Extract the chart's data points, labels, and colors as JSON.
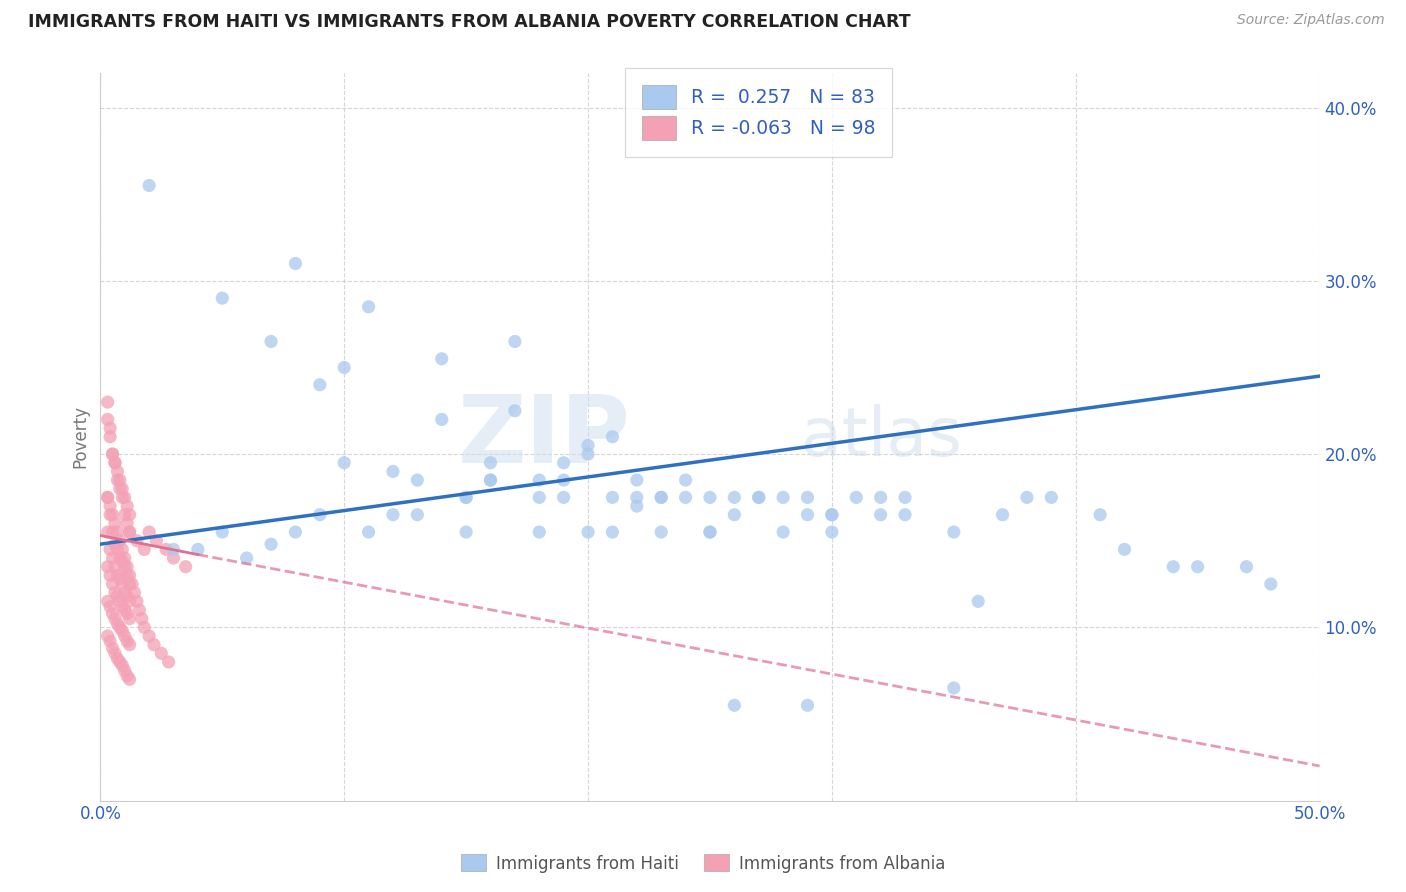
{
  "title": "IMMIGRANTS FROM HAITI VS IMMIGRANTS FROM ALBANIA POVERTY CORRELATION CHART",
  "source": "Source: ZipAtlas.com",
  "ylabel": "Poverty",
  "xlim": [
    0.0,
    0.5
  ],
  "ylim": [
    0.0,
    0.42
  ],
  "haiti_color": "#aac9ee",
  "albania_color": "#f4a0b5",
  "haiti_line_color": "#3070c0",
  "albania_line_color": "#e07090",
  "haiti_R": 0.257,
  "haiti_N": 83,
  "albania_R": -0.063,
  "albania_N": 98,
  "background_color": "#ffffff",
  "grid_color": "#cccccc",
  "watermark_zip": "ZIP",
  "watermark_atlas": "atlas",
  "haiti_scatter_x": [
    0.02,
    0.05,
    0.07,
    0.08,
    0.09,
    0.1,
    0.11,
    0.12,
    0.13,
    0.14,
    0.15,
    0.16,
    0.17,
    0.18,
    0.19,
    0.2,
    0.21,
    0.22,
    0.23,
    0.24,
    0.25,
    0.26,
    0.27,
    0.28,
    0.29,
    0.3,
    0.31,
    0.32,
    0.33,
    0.35,
    0.37,
    0.39,
    0.42,
    0.45,
    0.48,
    0.03,
    0.06,
    0.09,
    0.12,
    0.15,
    0.18,
    0.21,
    0.24,
    0.27,
    0.3,
    0.33,
    0.36,
    0.16,
    0.19,
    0.22,
    0.25,
    0.28,
    0.04,
    0.07,
    0.1,
    0.13,
    0.16,
    0.19,
    0.22,
    0.14,
    0.17,
    0.2,
    0.23,
    0.26,
    0.29,
    0.32,
    0.38,
    0.41,
    0.44,
    0.47,
    0.05,
    0.08,
    0.11,
    0.15,
    0.18,
    0.21,
    0.25,
    0.3,
    0.35,
    0.2,
    0.23,
    0.26,
    0.29
  ],
  "haiti_scatter_y": [
    0.355,
    0.29,
    0.265,
    0.31,
    0.24,
    0.25,
    0.285,
    0.19,
    0.185,
    0.22,
    0.175,
    0.185,
    0.225,
    0.185,
    0.195,
    0.2,
    0.175,
    0.17,
    0.175,
    0.185,
    0.175,
    0.165,
    0.175,
    0.175,
    0.165,
    0.165,
    0.175,
    0.175,
    0.165,
    0.155,
    0.165,
    0.175,
    0.145,
    0.135,
    0.125,
    0.145,
    0.14,
    0.165,
    0.165,
    0.175,
    0.175,
    0.21,
    0.175,
    0.175,
    0.165,
    0.175,
    0.115,
    0.195,
    0.185,
    0.175,
    0.155,
    0.155,
    0.145,
    0.148,
    0.195,
    0.165,
    0.185,
    0.175,
    0.185,
    0.255,
    0.265,
    0.205,
    0.175,
    0.175,
    0.175,
    0.165,
    0.175,
    0.165,
    0.135,
    0.135,
    0.155,
    0.155,
    0.155,
    0.155,
    0.155,
    0.155,
    0.155,
    0.155,
    0.065,
    0.155,
    0.155,
    0.055,
    0.055
  ],
  "albania_scatter_x": [
    0.003,
    0.004,
    0.005,
    0.006,
    0.007,
    0.008,
    0.009,
    0.01,
    0.011,
    0.012,
    0.003,
    0.004,
    0.005,
    0.006,
    0.007,
    0.008,
    0.009,
    0.01,
    0.011,
    0.012,
    0.003,
    0.004,
    0.005,
    0.006,
    0.007,
    0.008,
    0.009,
    0.01,
    0.011,
    0.012,
    0.003,
    0.004,
    0.005,
    0.006,
    0.007,
    0.008,
    0.009,
    0.01,
    0.011,
    0.012,
    0.003,
    0.004,
    0.005,
    0.006,
    0.007,
    0.008,
    0.009,
    0.01,
    0.011,
    0.012,
    0.003,
    0.004,
    0.005,
    0.006,
    0.007,
    0.008,
    0.009,
    0.01,
    0.011,
    0.012,
    0.003,
    0.004,
    0.005,
    0.006,
    0.007,
    0.008,
    0.009,
    0.01,
    0.011,
    0.012,
    0.003,
    0.004,
    0.005,
    0.006,
    0.007,
    0.008,
    0.009,
    0.01,
    0.011,
    0.012,
    0.013,
    0.014,
    0.015,
    0.016,
    0.017,
    0.018,
    0.02,
    0.022,
    0.025,
    0.028,
    0.02,
    0.023,
    0.027,
    0.03,
    0.035,
    0.012,
    0.015,
    0.018
  ],
  "albania_scatter_y": [
    0.23,
    0.215,
    0.2,
    0.195,
    0.185,
    0.18,
    0.175,
    0.165,
    0.16,
    0.155,
    0.175,
    0.165,
    0.155,
    0.148,
    0.145,
    0.14,
    0.138,
    0.135,
    0.13,
    0.125,
    0.155,
    0.145,
    0.14,
    0.135,
    0.13,
    0.128,
    0.125,
    0.12,
    0.118,
    0.115,
    0.135,
    0.13,
    0.125,
    0.12,
    0.118,
    0.115,
    0.112,
    0.11,
    0.108,
    0.105,
    0.115,
    0.112,
    0.108,
    0.105,
    0.102,
    0.1,
    0.098,
    0.095,
    0.092,
    0.09,
    0.095,
    0.092,
    0.088,
    0.085,
    0.082,
    0.08,
    0.078,
    0.075,
    0.072,
    0.07,
    0.22,
    0.21,
    0.2,
    0.195,
    0.19,
    0.185,
    0.18,
    0.175,
    0.17,
    0.165,
    0.175,
    0.17,
    0.165,
    0.16,
    0.155,
    0.15,
    0.145,
    0.14,
    0.135,
    0.13,
    0.125,
    0.12,
    0.115,
    0.11,
    0.105,
    0.1,
    0.095,
    0.09,
    0.085,
    0.08,
    0.155,
    0.15,
    0.145,
    0.14,
    0.135,
    0.155,
    0.15,
    0.145
  ]
}
